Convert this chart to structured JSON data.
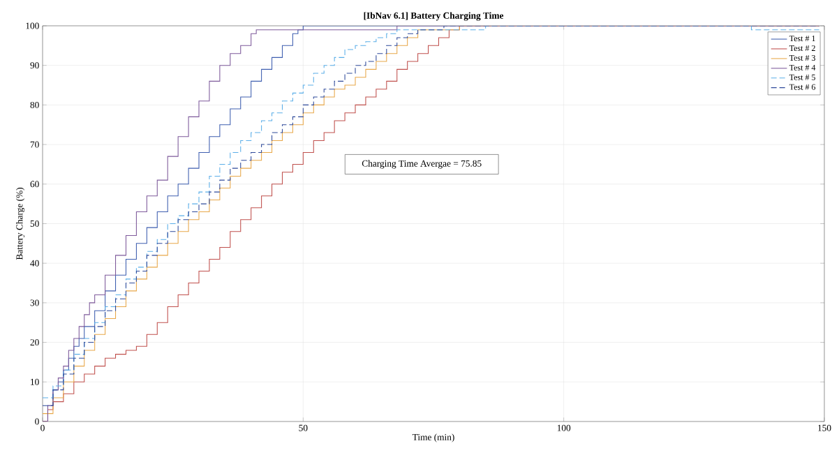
{
  "chart_data": {
    "type": "step",
    "title": "[IbNav 6.1] Battery Charging Time",
    "xlabel": "Time (min)",
    "ylabel": "Battery Charge (%)",
    "xlim": [
      0,
      150
    ],
    "ylim": [
      0,
      100
    ],
    "xticks": [
      0,
      50,
      100,
      150
    ],
    "yticks": [
      0,
      10,
      20,
      30,
      40,
      50,
      60,
      70,
      80,
      90,
      100
    ],
    "grid": true,
    "legend": "top right",
    "annotations": [
      "Charging Time Avergae = 75.85"
    ],
    "series": [
      {
        "name": "Test # 1",
        "color": "#3f5fb0",
        "line_style": "solid",
        "x": [
          0,
          1,
          2,
          3,
          4,
          5,
          6,
          7,
          8,
          10,
          12,
          14,
          16,
          18,
          20,
          22,
          24,
          26,
          28,
          30,
          32,
          34,
          36,
          38,
          40,
          42,
          44,
          46,
          48,
          49,
          50,
          149
        ],
        "values": [
          0,
          4,
          8,
          10,
          13,
          16,
          19,
          21,
          24,
          28,
          33,
          37,
          41,
          45,
          49,
          53,
          57,
          60,
          64,
          68,
          72,
          75,
          79,
          82,
          86,
          89,
          92,
          95,
          98,
          99,
          100,
          100
        ]
      },
      {
        "name": "Test # 2",
        "color": "#c0504d",
        "line_style": "solid",
        "x": [
          0,
          1,
          2,
          4,
          6,
          8,
          10,
          12,
          14,
          16,
          18,
          20,
          22,
          24,
          26,
          28,
          30,
          32,
          34,
          36,
          38,
          40,
          42,
          44,
          46,
          48,
          50,
          52,
          54,
          56,
          58,
          60,
          62,
          64,
          66,
          68,
          70,
          72,
          74,
          76,
          78,
          80,
          149
        ],
        "values": [
          0,
          3,
          5,
          7,
          10,
          12,
          14,
          16,
          17,
          18,
          19,
          22,
          25,
          29,
          32,
          35,
          38,
          41,
          44,
          48,
          51,
          54,
          57,
          60,
          63,
          65,
          68,
          71,
          73,
          76,
          78,
          80,
          82,
          84,
          86,
          89,
          91,
          93,
          95,
          97,
          99,
          100,
          100
        ]
      },
      {
        "name": "Test # 3",
        "color": "#e8a84a",
        "line_style": "solid",
        "x": [
          0,
          2,
          4,
          6,
          8,
          10,
          12,
          14,
          16,
          18,
          20,
          22,
          24,
          26,
          28,
          30,
          32,
          34,
          36,
          38,
          40,
          42,
          44,
          46,
          48,
          50,
          52,
          54,
          56,
          58,
          60,
          62,
          64,
          66,
          68,
          70,
          72,
          80,
          149
        ],
        "values": [
          2,
          6,
          10,
          14,
          18,
          22,
          26,
          29,
          33,
          36,
          39,
          42,
          45,
          48,
          51,
          53,
          56,
          59,
          62,
          64,
          66,
          68,
          71,
          73,
          75,
          78,
          80,
          82,
          84,
          85,
          87,
          89,
          91,
          93,
          95,
          97,
          99,
          100,
          100
        ]
      },
      {
        "name": "Test # 4",
        "color": "#7e5a9b",
        "line_style": "solid",
        "x": [
          0,
          1,
          2,
          3,
          4,
          5,
          6,
          7,
          8,
          9,
          10,
          12,
          14,
          16,
          18,
          20,
          22,
          24,
          26,
          28,
          30,
          32,
          34,
          36,
          38,
          40,
          41,
          68,
          149
        ],
        "values": [
          0,
          4,
          8,
          11,
          14,
          18,
          21,
          24,
          27,
          30,
          32,
          37,
          42,
          47,
          53,
          57,
          61,
          67,
          72,
          77,
          81,
          86,
          90,
          93,
          95,
          98,
          99,
          100,
          100
        ]
      },
      {
        "name": "Test # 5",
        "color": "#5aaee8",
        "line_style": "dashed",
        "x": [
          0,
          2,
          4,
          6,
          8,
          10,
          12,
          14,
          16,
          18,
          20,
          22,
          24,
          26,
          28,
          30,
          32,
          34,
          36,
          38,
          40,
          42,
          44,
          46,
          48,
          50,
          52,
          54,
          56,
          58,
          60,
          62,
          64,
          66,
          68,
          85,
          136,
          149
        ],
        "values": [
          6,
          9,
          13,
          17,
          21,
          25,
          29,
          32,
          36,
          39,
          43,
          46,
          50,
          52,
          55,
          58,
          62,
          65,
          68,
          71,
          73,
          76,
          78,
          81,
          83,
          85,
          88,
          90,
          92,
          94,
          95,
          96,
          97,
          98,
          99,
          100,
          99,
          99
        ]
      },
      {
        "name": "Test # 6",
        "color": "#2f4a9a",
        "line_style": "dashed",
        "x": [
          0,
          2,
          4,
          6,
          8,
          10,
          12,
          14,
          16,
          18,
          20,
          22,
          24,
          26,
          28,
          30,
          32,
          34,
          36,
          38,
          40,
          42,
          44,
          46,
          48,
          50,
          52,
          54,
          56,
          58,
          60,
          62,
          64,
          66,
          68,
          70,
          72,
          77,
          149
        ],
        "values": [
          4,
          8,
          12,
          16,
          20,
          24,
          28,
          31,
          35,
          38,
          42,
          45,
          48,
          51,
          53,
          55,
          58,
          61,
          64,
          66,
          68,
          70,
          73,
          75,
          77,
          80,
          82,
          84,
          86,
          88,
          90,
          91,
          93,
          95,
          97,
          98,
          99,
          100,
          100
        ]
      }
    ]
  }
}
